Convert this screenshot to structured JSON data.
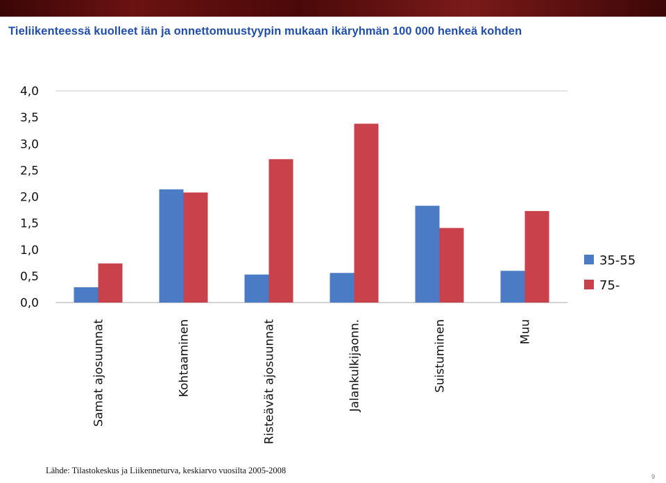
{
  "title": "Tieliikenteessä kuolleet iän ja onnettomuustyypin mukaan ikäryhmän 100 000 henkeä kohden",
  "source": "Lähde: Tilastokeskus ja Liikenneturva, keskiarvo vuosilta 2005-2008",
  "page_number": "9",
  "chart_data": {
    "type": "bar",
    "title": "Tieliikenteessä kuolleet iän ja onnettomuustyypin mukaan ikäryhmän 100 000 henkeä kohden",
    "xlabel": "",
    "ylabel": "",
    "ylim": [
      0,
      4
    ],
    "yticks": [
      "0,0",
      "0,5",
      "1,0",
      "1,5",
      "2,0",
      "2,5",
      "3,0",
      "3,5",
      "4,0"
    ],
    "grid": "top line only",
    "legend_position": "right",
    "categories": [
      "Samat ajosuunnat",
      "Kohtaaminen",
      "Risteävät ajosuunnat",
      "Jalankulkijaonn.",
      "Suistuminen",
      "Muu"
    ],
    "series": [
      {
        "name": "35-55",
        "color": "#4b7bc5",
        "values": [
          0.29,
          2.14,
          0.53,
          0.56,
          1.83,
          0.6
        ]
      },
      {
        "name": "75-",
        "color": "#c9424b",
        "values": [
          0.74,
          2.08,
          2.71,
          3.38,
          1.41,
          1.73
        ]
      }
    ]
  }
}
